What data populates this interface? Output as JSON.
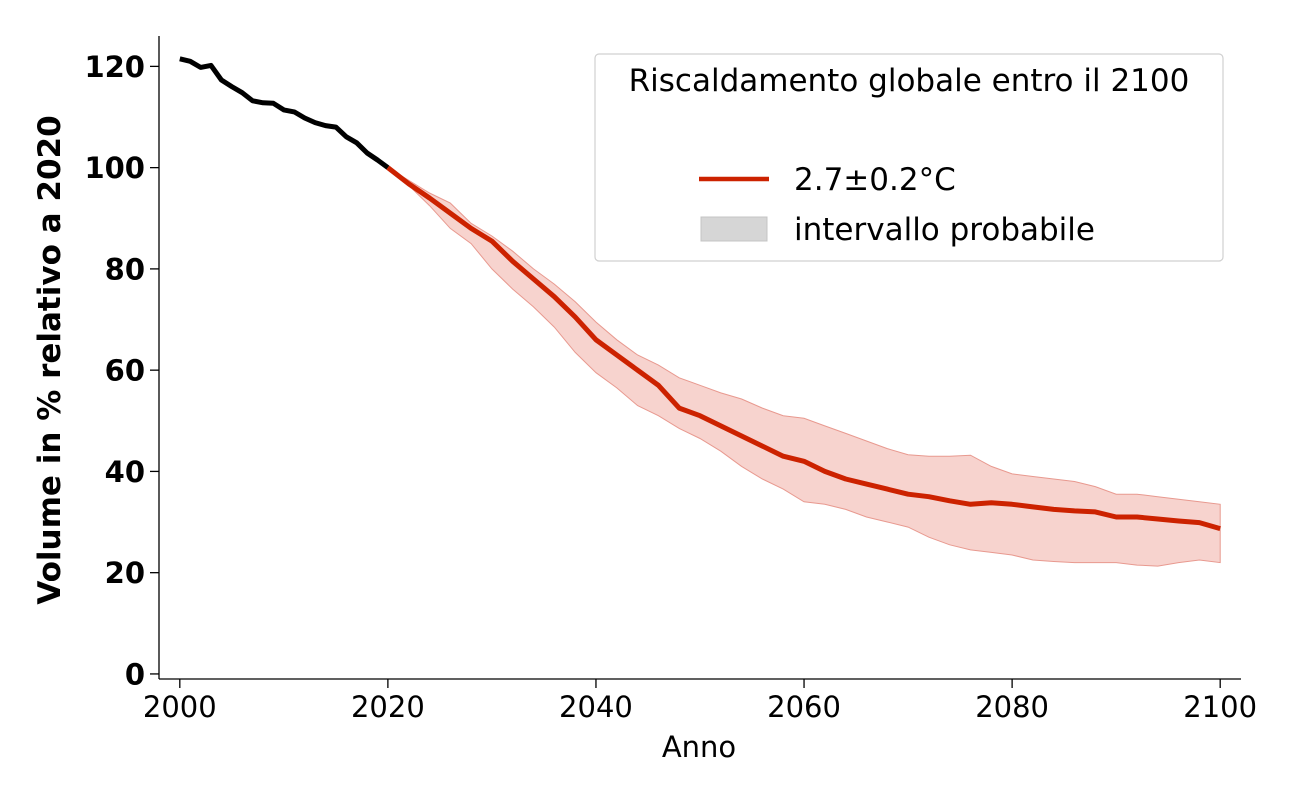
{
  "chart_data": {
    "type": "line",
    "xlabel": "Anno",
    "ylabel": "Volume in % relativo a 2020",
    "xlim": [
      1998,
      2102
    ],
    "ylim": [
      -1,
      126
    ],
    "xticks": [
      2000,
      2020,
      2040,
      2060,
      2080,
      2100
    ],
    "yticks": [
      0,
      20,
      40,
      60,
      80,
      100,
      120
    ],
    "grid": false,
    "legend": {
      "title": "Riscaldamento globale entro il 2100",
      "position": "top-right",
      "entries": [
        "2.7±0.2°C",
        "intervallo probabile"
      ]
    },
    "colors": {
      "historical": "#000000",
      "projection": "#cc2200",
      "band": "#f2b8b0",
      "legend_band": "#d6d6d6"
    },
    "series": [
      {
        "name": "storico",
        "x": [
          2000,
          2001,
          2002,
          2003,
          2004,
          2005,
          2006,
          2007,
          2008,
          2009,
          2010,
          2011,
          2012,
          2013,
          2014,
          2015,
          2016,
          2017,
          2018,
          2019,
          2020
        ],
        "y": [
          121.5,
          121,
          119.8,
          120.2,
          117.3,
          116,
          114.8,
          113.2,
          112.8,
          112.7,
          111.4,
          111,
          109.8,
          108.9,
          108.3,
          108,
          106.1,
          104.9,
          102.9,
          101.5,
          100
        ]
      },
      {
        "name": "2.7±0.2°C",
        "x": [
          2020,
          2022,
          2024,
          2026,
          2028,
          2030,
          2032,
          2034,
          2036,
          2038,
          2040,
          2042,
          2044,
          2046,
          2048,
          2050,
          2052,
          2054,
          2056,
          2058,
          2060,
          2062,
          2064,
          2066,
          2068,
          2070,
          2072,
          2074,
          2076,
          2078,
          2080,
          2082,
          2084,
          2086,
          2088,
          2090,
          2092,
          2094,
          2096,
          2098,
          2100
        ],
        "y": [
          100,
          96.8,
          94,
          91,
          88,
          85.5,
          81.5,
          78,
          74.5,
          70.5,
          66,
          63,
          60,
          57,
          52.5,
          51,
          49,
          47,
          45,
          43,
          42,
          40,
          38.5,
          37.5,
          36.5,
          35.5,
          35,
          34.2,
          33.5,
          33.8,
          33.5,
          33,
          32.5,
          32.2,
          32,
          31,
          31,
          30.6,
          30.2,
          29.9,
          28.7
        ]
      }
    ],
    "band": {
      "name": "intervallo probabile",
      "x": [
        2020,
        2022,
        2024,
        2026,
        2028,
        2030,
        2032,
        2034,
        2036,
        2038,
        2040,
        2042,
        2044,
        2046,
        2048,
        2050,
        2052,
        2054,
        2056,
        2058,
        2060,
        2062,
        2064,
        2066,
        2068,
        2070,
        2072,
        2074,
        2076,
        2078,
        2080,
        2082,
        2084,
        2086,
        2088,
        2090,
        2092,
        2094,
        2096,
        2098,
        2100
      ],
      "upper": [
        100,
        97.5,
        95,
        93,
        89,
        86.5,
        83.5,
        80,
        77,
        73.5,
        69.5,
        66,
        63,
        61,
        58.5,
        57,
        55.5,
        54.3,
        52.5,
        51,
        50.5,
        49,
        47.5,
        46,
        44.5,
        43.3,
        43,
        43,
        43.2,
        41,
        39.5,
        39,
        38.5,
        38,
        37,
        35.5,
        35.5,
        35,
        34.5,
        34,
        33.5
      ],
      "lower": [
        100,
        96.5,
        92.5,
        88,
        85,
        80,
        76,
        72.5,
        68.5,
        63.5,
        59.5,
        56.5,
        53,
        51,
        48.5,
        46.5,
        44,
        41,
        38.5,
        36.5,
        34,
        33.5,
        32.5,
        31,
        30,
        29,
        27,
        25.5,
        24.5,
        24,
        23.5,
        22.5,
        22.2,
        22,
        22,
        22,
        21.5,
        21.3,
        22,
        22.5,
        22
      ]
    }
  }
}
